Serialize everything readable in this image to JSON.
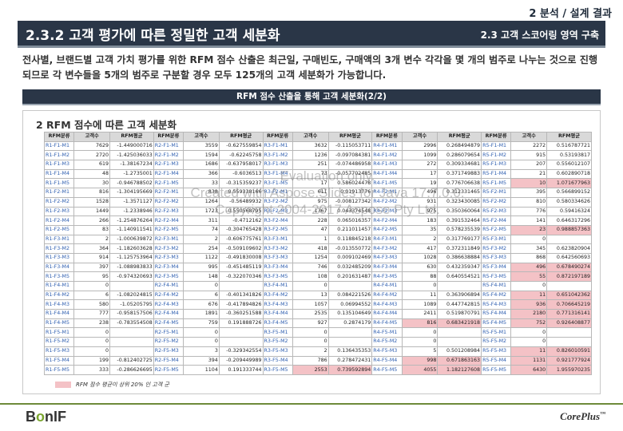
{
  "header": {
    "top_right": "2 분석 / 설계 결과",
    "title": "2.3.2 고객 평가에 따른 정밀한 고객 세분화",
    "section": "2.3 고객 스코어링 영역 구축"
  },
  "intro": "전사별, 브랜드별 고객 가치 평가를 위한 RFM 점수 산출은 최근일, 구매빈도, 구매액의 3개 변수 각각을 몇 개의 범주로 나누는 것으로 진행되므로 각 변수들을 5개의 범주로 구분할 경우 모두 125개의 고객 세분화가 가능합니다.",
  "banner": "RFM 점수 산출을 통해 고객 세분화(2/2)",
  "panel_title": "2 RFM 점수에 따른 고객 세분화",
  "table": {
    "headers": [
      "RFM분류",
      "고객수",
      "RFM평균",
      "RFM분류",
      "고객수",
      "RFM평균",
      "RFM분류",
      "고객수",
      "RFM평균",
      "RFM분류",
      "고객수",
      "RFM평균",
      "RFM분류",
      "고객수",
      "RFM평균"
    ],
    "rows": [
      [
        "R1-F1-M1",
        "7629",
        "-1.449000716",
        "R2-F1-M1",
        "3559",
        "-0.627559854",
        "R3-F1-M1",
        "3632",
        "-0.115053711",
        "R4-F1-M1",
        "2996",
        "0.268494879",
        "R5-F1-M1",
        "2272",
        "0.516787721"
      ],
      [
        "R1-F1-M2",
        "2720",
        "-1.425036033",
        "R2-F1-M2",
        "1594",
        "-0.62245758",
        "R3-F1-M2",
        "1236",
        "-0.097084381",
        "R4-F1-M2",
        "1099",
        "0.286079654",
        "R5-F1-M2",
        "915",
        "0.53193817"
      ],
      [
        "R1-F1-M3",
        "619",
        "-1.38167234",
        "R2-F1-M3",
        "1686",
        "-0.637958017",
        "R3-F1-M3",
        "251",
        "-0.074486958",
        "R4-F1-M3",
        "272",
        "0.309334681",
        "R5-F1-M3",
        "207",
        "0.556012107"
      ],
      [
        "R1-F1-M4",
        "48",
        "-1.2735001",
        "R2-F1-M4",
        "366",
        "-0.6036513",
        "R3-F1-M4",
        "73",
        "-0.057702485",
        "R4-F1-M4",
        "17",
        "0.371749883",
        "R5-F1-M4",
        "21",
        "0.602890718"
      ],
      [
        "R1-F1-M5",
        "30",
        "-0.946788502",
        "R2-F1-M5",
        "33",
        "-0.315359237",
        "R3-F1-M5",
        "17",
        "0.586024478",
        "R4-F1-M5",
        "19",
        "0.776706638",
        "R5-F1-M5",
        "10",
        "1.071677963"
      ],
      [
        "R1-F2-M1",
        "816",
        "-1.304195669",
        "R2-F2-M1",
        "838",
        "-0.559338166",
        "R3-F2-M1",
        "611",
        "0.01913776",
        "R4-F2-M1",
        "496",
        "0.312331465",
        "R5-F2-M1",
        "395",
        "0.566899152"
      ],
      [
        "R1-F2-M2",
        "1528",
        "-1.3571127",
        "R2-F2-M2",
        "1264",
        "-0.56489932",
        "R3-F2-M2",
        "975",
        "-0.008127342",
        "R4-F2-M2",
        "931",
        "0.323430085",
        "R5-F2-M2",
        "810",
        "0.580334626"
      ],
      [
        "R1-F2-M3",
        "1449",
        "-1.2338946",
        "R2-F2-M3",
        "1723",
        "-0.550568795",
        "R3-F2-M3",
        "1367",
        "0.043374548",
        "R4-F2-M3",
        "975",
        "0.350360064",
        "R5-F2-M3",
        "776",
        "0.59416324"
      ],
      [
        "R1-F2-M4",
        "266",
        "-1.254876264",
        "R2-F2-M4",
        "311",
        "-0.4712162",
        "R3-F2-M4",
        "228",
        "0.065016357",
        "R4-F2-M4",
        "183",
        "0.391532464",
        "R5-F2-M4",
        "141",
        "0.646317296"
      ],
      [
        "R1-F2-M5",
        "83",
        "-1.140911541",
        "R2-F2-M5",
        "74",
        "-0.304765428",
        "R3-F2-M5",
        "47",
        "0.211011457",
        "R4-F2-M5",
        "35",
        "0.578235539",
        "R5-F2-M5",
        "23",
        "0.988857363"
      ],
      [
        "R1-F3-M1",
        "2",
        "-1.000639872",
        "R2-F3-M1",
        "2",
        "-0.606775761",
        "R3-F3-M1",
        "1",
        "0.118845218",
        "R4-F3-M1",
        "2",
        "0.317769177",
        "R5-F3-M1",
        "0",
        ""
      ],
      [
        "R1-F3-M2",
        "364",
        "-1.182603628",
        "R2-F3-M2",
        "254",
        "-0.509109602",
        "R3-F3-M2",
        "418",
        "-0.013550772",
        "R4-F3-M2",
        "417",
        "0.372311849",
        "R5-F3-M2",
        "345",
        "0.623820904"
      ],
      [
        "R1-F3-M3",
        "914",
        "-1.125753964",
        "R2-F3-M3",
        "1122",
        "-0.491830008",
        "R3-F3-M3",
        "1254",
        "0.009102469",
        "R4-F3-M3",
        "1028",
        "0.386638884",
        "R5-F3-M3",
        "868",
        "0.642560693"
      ],
      [
        "R1-F3-M4",
        "397",
        "-1.088983833",
        "R2-F3-M4",
        "995",
        "-0.451485119",
        "R3-F3-M4",
        "746",
        "0.032485209",
        "R4-F3-M4",
        "630",
        "0.432359347",
        "R5-F3-M4",
        "496",
        "0.678490274"
      ],
      [
        "R1-F3-M5",
        "95",
        "-0.974320693",
        "R2-F3-M5",
        "148",
        "-0.322070346",
        "R3-F3-M5",
        "108",
        "0.201631487",
        "R4-F3-M5",
        "88",
        "0.640554521",
        "R5-F3-M5",
        "55",
        "0.872197189"
      ],
      [
        "R1-F4-M1",
        "0",
        "",
        "R2-F4-M1",
        "0",
        "",
        "R3-F4-M1",
        "0",
        "",
        "R4-F4-M1",
        "0",
        "",
        "R5-F4-M1",
        "0",
        ""
      ],
      [
        "R1-F4-M2",
        "6",
        "-1.082024815",
        "R2-F4-M2",
        "6",
        "-0.401341826",
        "R3-F4-M2",
        "13",
        "0.084221526",
        "R4-F4-M2",
        "11",
        "0.363906894",
        "R5-F4-M2",
        "11",
        "0.651042362"
      ],
      [
        "R1-F4-M3",
        "580",
        "-1.05205795",
        "R2-F4-M3",
        "676",
        "-0.417894826",
        "R3-F4-M3",
        "1057",
        "0.06994552",
        "R4-F4-M3",
        "1089",
        "0.447742815",
        "R5-F4-M3",
        "936",
        "0.706645219"
      ],
      [
        "R1-F4-M4",
        "777",
        "-0.958157506",
        "R2-F4-M4",
        "1891",
        "-0.360251588",
        "R3-F4-M4",
        "2535",
        "0.135104649",
        "R4-F4-M4",
        "2411",
        "0.519870791",
        "R5-F4-M4",
        "2180",
        "0.771316141"
      ],
      [
        "R1-F4-M5",
        "238",
        "-0.783554508",
        "R2-F4-M5",
        "759",
        "0.191888726",
        "R3-F4-M5",
        "927",
        "0.2874179",
        "R4-F4-M5",
        "816",
        "0.683421918",
        "R5-F4-M5",
        "752",
        "0.926408877"
      ],
      [
        "R1-F5-M1",
        "0",
        "",
        "R2-F5-M1",
        "0",
        "",
        "R3-F5-M1",
        "0",
        "",
        "R4-F5-M1",
        "0",
        "",
        "R5-F5-M1",
        "0",
        ""
      ],
      [
        "R1-F5-M2",
        "0",
        "",
        "R2-F5-M2",
        "0",
        "",
        "R3-F5-M2",
        "0",
        "",
        "R4-F5-M2",
        "0",
        "",
        "R5-F5-M2",
        "0",
        ""
      ],
      [
        "R1-F5-M3",
        "0",
        "",
        "R2-F5-M3",
        "3",
        "-0.329342554",
        "R3-F5-M3",
        "2",
        "0.136435353",
        "R4-F5-M3",
        "5",
        "0.501208984",
        "R5-F5-M3",
        "11",
        "0.826010591"
      ],
      [
        "R1-F5-M4",
        "199",
        "-0.812402725",
        "R2-F5-M4",
        "394",
        "-0.209449989",
        "R3-F5-M4",
        "786",
        "0.278472431",
        "R4-F5-M4",
        "998",
        "0.671863163",
        "R5-F5-M4",
        "1131",
        "0.921777924"
      ],
      [
        "R1-F5-M5",
        "333",
        "-0.286626695",
        "R2-F5-M5",
        "1104",
        "0.191333744",
        "R3-F5-M5",
        "2553",
        "0.739592894",
        "R4-F5-M5",
        "4055",
        "1.182127608",
        "R5-F5-M5",
        "6430",
        "1.955970235"
      ]
    ],
    "highlight": [
      [
        4,
        13
      ],
      [
        4,
        14
      ],
      [
        9,
        13
      ],
      [
        9,
        14
      ],
      [
        13,
        13
      ],
      [
        13,
        14
      ],
      [
        14,
        13
      ],
      [
        14,
        14
      ],
      [
        16,
        13
      ],
      [
        16,
        14
      ],
      [
        17,
        13
      ],
      [
        17,
        14
      ],
      [
        18,
        13
      ],
      [
        18,
        14
      ],
      [
        19,
        10
      ],
      [
        19,
        11
      ],
      [
        19,
        13
      ],
      [
        19,
        14
      ],
      [
        22,
        13
      ],
      [
        22,
        14
      ],
      [
        23,
        10
      ],
      [
        23,
        11
      ],
      [
        23,
        13
      ],
      [
        23,
        14
      ],
      [
        24,
        7
      ],
      [
        24,
        8
      ],
      [
        24,
        10
      ],
      [
        24,
        11
      ],
      [
        24,
        13
      ],
      [
        24,
        14
      ]
    ]
  },
  "legend": "RFM 점수 평균이 상위 20% 인 고객 군",
  "colors": {
    "header_bg": "#2a3647",
    "highlight": "#f4c2c6",
    "key_text": "#2f5fb0",
    "footer_line": "#6e8a3a"
  },
  "footer": {
    "left_logo_a": "B",
    "left_logo_b": "o",
    "left_logo_c": "nIF",
    "right_logo": "CorePlus",
    "right_tm": "™"
  },
  "watermark": [
    "Evaluation only.",
    "Created with Aspose.Slides for Java 17.7.0.0.",
    "Copyright 2004-2017 Aspose Pty Ltd."
  ]
}
